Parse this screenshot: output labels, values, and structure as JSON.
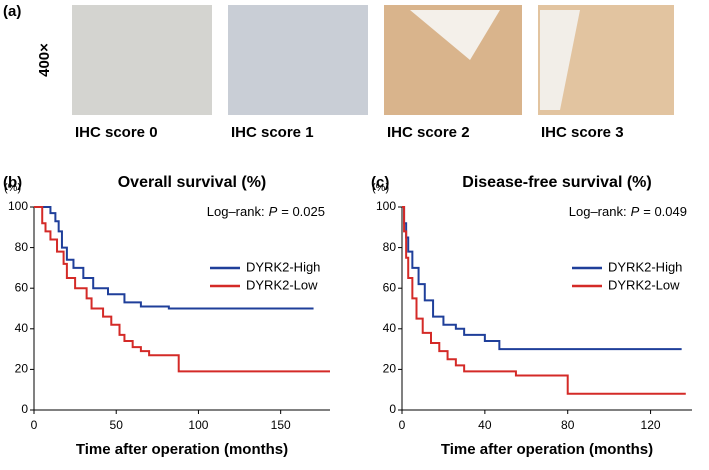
{
  "figure": {
    "panel_a": "(a)",
    "magnification": "400×",
    "ihc_labels": [
      "IHC score 0",
      "IHC score 1",
      "IHC score 2",
      "IHC score 3"
    ]
  },
  "chart_data": [
    {
      "type": "line",
      "step": true,
      "panel": "(b)",
      "title": "Overall survival (%)",
      "y_unit": "(%)",
      "stat_label": "Log–rank:",
      "stat_symbol": "P",
      "stat_value": "= 0.025",
      "x_label": "Time after operation (months)",
      "xlim": [
        0,
        180
      ],
      "xticks": [
        0,
        50,
        100,
        150
      ],
      "ylim": [
        0,
        100
      ],
      "yticks": [
        0,
        20,
        40,
        60,
        80,
        100
      ],
      "series": [
        {
          "name": "DYRK2-High",
          "color": "#1f3f9a",
          "x": [
            0,
            10,
            13,
            15,
            17,
            20,
            24,
            30,
            36,
            45,
            55,
            65,
            82,
            88,
            170
          ],
          "values": [
            100,
            97,
            93,
            88,
            80,
            74,
            70,
            65,
            60,
            57,
            53,
            51,
            50,
            50,
            50
          ]
        },
        {
          "name": "DYRK2-Low",
          "color": "#d42a27",
          "x": [
            0,
            5,
            7,
            10,
            14,
            18,
            20,
            25,
            32,
            35,
            42,
            47,
            52,
            55,
            60,
            65,
            70,
            88,
            93,
            180
          ],
          "values": [
            100,
            92,
            88,
            84,
            78,
            72,
            65,
            60,
            55,
            50,
            46,
            42,
            37,
            34,
            31,
            29,
            27,
            19,
            19,
            19
          ]
        }
      ]
    },
    {
      "type": "line",
      "step": true,
      "panel": "(c)",
      "title": "Disease-free survival (%)",
      "y_unit": "(%)",
      "stat_label": "Log–rank:",
      "stat_symbol": "P",
      "stat_value": "= 0.049",
      "x_label": "Time after operation (months)",
      "xlim": [
        0,
        140
      ],
      "xticks": [
        0,
        40,
        80,
        120
      ],
      "ylim": [
        0,
        100
      ],
      "yticks": [
        0,
        20,
        40,
        60,
        80,
        100
      ],
      "series": [
        {
          "name": "DYRK2-High",
          "color": "#1f3f9a",
          "x": [
            0,
            1,
            2,
            3,
            5,
            8,
            11,
            15,
            20,
            26,
            30,
            40,
            47,
            135
          ],
          "values": [
            100,
            92,
            85,
            78,
            70,
            62,
            54,
            46,
            42,
            40,
            37,
            34,
            30,
            30
          ]
        },
        {
          "name": "DYRK2-Low",
          "color": "#d42a27",
          "x": [
            0,
            1,
            2,
            3,
            5,
            7,
            10,
            14,
            18,
            22,
            26,
            30,
            55,
            80,
            137
          ],
          "values": [
            100,
            88,
            75,
            65,
            55,
            45,
            38,
            33,
            29,
            25,
            22,
            19,
            17,
            8,
            8
          ]
        }
      ]
    }
  ]
}
